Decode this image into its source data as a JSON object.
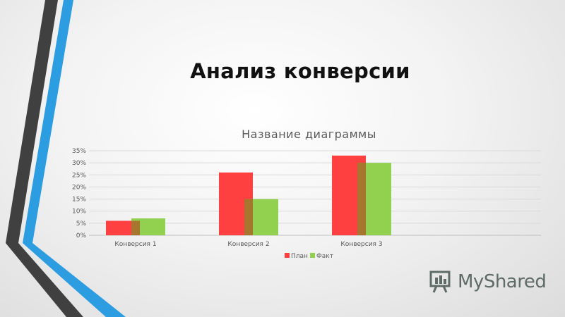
{
  "slide": {
    "title": "Анализ конверсии",
    "logo_text": "MyShared"
  },
  "colors": {
    "plan": "#ff4040",
    "fact": "#92d050",
    "overlap": "#a8752f",
    "stripe_dark": "#404040",
    "stripe_blue": "#2b9de0"
  },
  "chart_data": {
    "type": "bar",
    "title": "Название диаграммы",
    "categories": [
      "Конверсия 1",
      "Конверсия 2",
      "Конверсия 3"
    ],
    "series": [
      {
        "name": "План",
        "values": [
          0.06,
          0.26,
          0.33
        ]
      },
      {
        "name": "Факт",
        "values": [
          0.07,
          0.15,
          0.3
        ]
      }
    ],
    "ylim": [
      0,
      0.35
    ],
    "yticks": [
      "0%",
      "5%",
      "10%",
      "15%",
      "20%",
      "25%",
      "30%",
      "35%"
    ],
    "grid": true,
    "legend": "bottom"
  }
}
